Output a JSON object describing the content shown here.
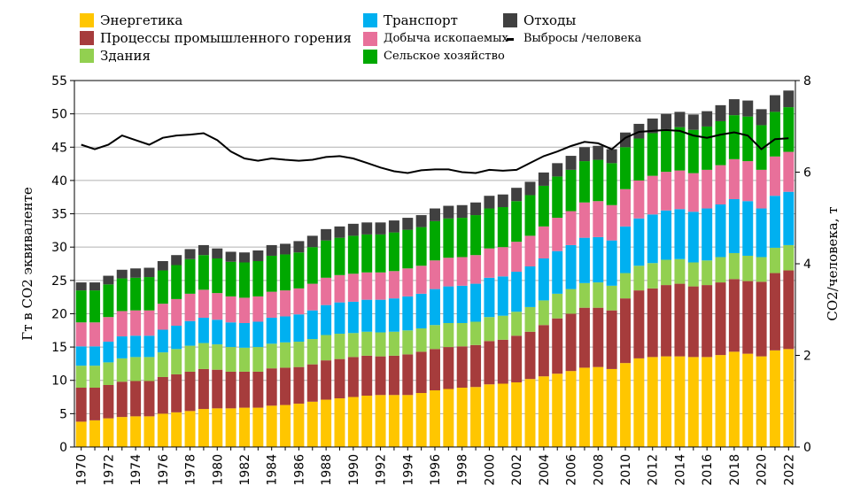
{
  "chart_data": {
    "type": "bar",
    "stacked": true,
    "categories": [
      1970,
      1971,
      1972,
      1973,
      1974,
      1975,
      1976,
      1977,
      1978,
      1979,
      1980,
      1981,
      1982,
      1983,
      1984,
      1985,
      1986,
      1987,
      1988,
      1989,
      1990,
      1991,
      1992,
      1993,
      1994,
      1995,
      1996,
      1997,
      1998,
      1999,
      2000,
      2001,
      2002,
      2003,
      2004,
      2005,
      2006,
      2007,
      2008,
      2009,
      2010,
      2011,
      2012,
      2013,
      2014,
      2015,
      2016,
      2017,
      2018,
      2019,
      2020,
      2021,
      2022
    ],
    "x_tick_labels": [
      "1970",
      "1972",
      "1974",
      "1976",
      "1978",
      "1980",
      "1982",
      "1984",
      "1986",
      "1988",
      "1990",
      "1992",
      "1994",
      "1996",
      "1998",
      "2000",
      "2002",
      "2004",
      "2006",
      "2008",
      "2010",
      "2012",
      "2014",
      "2016",
      "2018",
      "2020",
      "2022"
    ],
    "ylabel": "Гт в CO2 эквиваленте",
    "ylim": [
      0,
      55
    ],
    "y_ticks": [
      0,
      5,
      10,
      15,
      20,
      25,
      30,
      35,
      40,
      45,
      50,
      55
    ],
    "y2label": "CO2/человека, т",
    "y2lim": [
      0,
      8
    ],
    "y2_ticks": [
      0,
      2,
      4,
      6,
      8
    ],
    "grid": "y-major",
    "series": [
      {
        "name": "Энергетика",
        "color": "#FFC600",
        "values": [
          3.8,
          4.0,
          4.3,
          4.5,
          4.6,
          4.6,
          5.0,
          5.2,
          5.4,
          5.7,
          5.8,
          5.8,
          5.9,
          5.9,
          6.2,
          6.3,
          6.5,
          6.8,
          7.1,
          7.3,
          7.5,
          7.7,
          7.8,
          7.8,
          7.8,
          8.1,
          8.5,
          8.7,
          8.9,
          9.0,
          9.4,
          9.5,
          9.7,
          10.2,
          10.6,
          11.0,
          11.4,
          11.9,
          12.0,
          11.7,
          12.6,
          13.3,
          13.5,
          13.6,
          13.6,
          13.5,
          13.5,
          13.8,
          14.3,
          14.0,
          13.6,
          14.5,
          14.7
        ]
      },
      {
        "name": "Процессы промышленного горения",
        "color": "#A63C3C",
        "values": [
          5.1,
          4.9,
          5.0,
          5.3,
          5.3,
          5.3,
          5.5,
          5.7,
          5.9,
          6.0,
          5.8,
          5.5,
          5.4,
          5.4,
          5.6,
          5.6,
          5.5,
          5.6,
          5.9,
          5.9,
          6.0,
          6.0,
          5.8,
          5.9,
          6.1,
          6.2,
          6.2,
          6.3,
          6.2,
          6.3,
          6.5,
          6.6,
          7.0,
          7.1,
          7.7,
          8.3,
          8.6,
          9.0,
          8.9,
          8.8,
          9.7,
          10.2,
          10.3,
          10.7,
          10.9,
          10.6,
          10.8,
          10.9,
          10.9,
          10.9,
          11.2,
          11.6,
          11.8
        ]
      },
      {
        "name": "Здания",
        "color": "#92D050",
        "values": [
          3.3,
          3.3,
          3.4,
          3.5,
          3.6,
          3.6,
          3.7,
          3.8,
          3.9,
          3.9,
          3.8,
          3.7,
          3.6,
          3.7,
          3.7,
          3.8,
          3.8,
          3.8,
          3.8,
          3.8,
          3.6,
          3.6,
          3.6,
          3.6,
          3.6,
          3.5,
          3.6,
          3.6,
          3.5,
          3.5,
          3.6,
          3.6,
          3.6,
          3.7,
          3.7,
          3.7,
          3.7,
          3.7,
          3.8,
          3.7,
          3.8,
          3.7,
          3.8,
          3.8,
          3.7,
          3.6,
          3.7,
          3.8,
          3.9,
          3.8,
          3.7,
          3.8,
          3.8
        ]
      },
      {
        "name": "Транспорт",
        "color": "#00B0F0",
        "values": [
          2.9,
          2.9,
          3.1,
          3.3,
          3.2,
          3.2,
          3.4,
          3.5,
          3.7,
          3.8,
          3.7,
          3.7,
          3.7,
          3.8,
          3.9,
          3.9,
          4.1,
          4.3,
          4.5,
          4.7,
          4.7,
          4.8,
          4.9,
          5.0,
          5.1,
          5.2,
          5.4,
          5.5,
          5.6,
          5.7,
          5.9,
          5.9,
          6.0,
          6.1,
          6.3,
          6.4,
          6.6,
          6.8,
          6.8,
          6.8,
          7.0,
          7.1,
          7.3,
          7.4,
          7.5,
          7.6,
          7.8,
          7.9,
          8.1,
          8.2,
          7.3,
          7.8,
          8.0
        ]
      },
      {
        "name": "Добыча ископаемых",
        "color": "#E8709A",
        "values": [
          3.6,
          3.6,
          3.7,
          3.8,
          3.8,
          3.8,
          3.9,
          4.0,
          4.1,
          4.2,
          4.0,
          3.9,
          3.8,
          3.8,
          3.9,
          3.9,
          3.9,
          4.0,
          4.1,
          4.1,
          4.2,
          4.1,
          4.1,
          4.1,
          4.2,
          4.2,
          4.3,
          4.3,
          4.3,
          4.3,
          4.4,
          4.4,
          4.5,
          4.6,
          4.8,
          5.0,
          5.1,
          5.3,
          5.4,
          5.3,
          5.6,
          5.7,
          5.8,
          5.8,
          5.8,
          5.8,
          5.8,
          5.9,
          6.0,
          6.0,
          5.8,
          5.9,
          6.0
        ]
      },
      {
        "name": "Сельское хозяйство",
        "color": "#00A800",
        "values": [
          4.8,
          4.8,
          4.9,
          4.9,
          4.9,
          5.0,
          5.0,
          5.1,
          5.2,
          5.2,
          5.2,
          5.2,
          5.3,
          5.3,
          5.4,
          5.4,
          5.4,
          5.5,
          5.6,
          5.6,
          5.7,
          5.7,
          5.7,
          5.8,
          5.8,
          5.8,
          5.9,
          5.9,
          5.9,
          6.0,
          6.0,
          6.0,
          6.1,
          6.1,
          6.1,
          6.2,
          6.2,
          6.2,
          6.2,
          6.3,
          6.3,
          6.3,
          6.4,
          6.4,
          6.5,
          6.5,
          6.5,
          6.6,
          6.6,
          6.7,
          6.7,
          6.7,
          6.7
        ]
      },
      {
        "name": "Отходы",
        "color": "#404040",
        "values": [
          1.2,
          1.2,
          1.3,
          1.3,
          1.4,
          1.4,
          1.4,
          1.5,
          1.5,
          1.5,
          1.5,
          1.5,
          1.5,
          1.6,
          1.6,
          1.6,
          1.7,
          1.7,
          1.7,
          1.7,
          1.8,
          1.8,
          1.8,
          1.8,
          1.8,
          1.8,
          1.9,
          1.9,
          1.9,
          1.9,
          1.9,
          1.9,
          2.0,
          2.0,
          2.0,
          2.0,
          2.1,
          2.1,
          2.1,
          2.1,
          2.2,
          2.2,
          2.2,
          2.3,
          2.3,
          2.3,
          2.3,
          2.4,
          2.4,
          2.4,
          2.4,
          2.5,
          2.5
        ]
      }
    ],
    "line_series": {
      "name": "Выбросы /человека",
      "axis": "y2",
      "color": "#000000",
      "values": [
        6.6,
        6.5,
        6.6,
        6.8,
        6.7,
        6.6,
        6.75,
        6.8,
        6.82,
        6.85,
        6.7,
        6.45,
        6.3,
        6.25,
        6.3,
        6.27,
        6.25,
        6.27,
        6.33,
        6.35,
        6.3,
        6.2,
        6.1,
        6.02,
        5.98,
        6.04,
        6.06,
        6.06,
        6.0,
        5.98,
        6.05,
        6.03,
        6.05,
        6.2,
        6.35,
        6.45,
        6.57,
        6.66,
        6.63,
        6.5,
        6.75,
        6.88,
        6.9,
        6.92,
        6.9,
        6.8,
        6.75,
        6.82,
        6.87,
        6.8,
        6.5,
        6.72,
        6.74
      ]
    },
    "legend_placement": "top"
  }
}
